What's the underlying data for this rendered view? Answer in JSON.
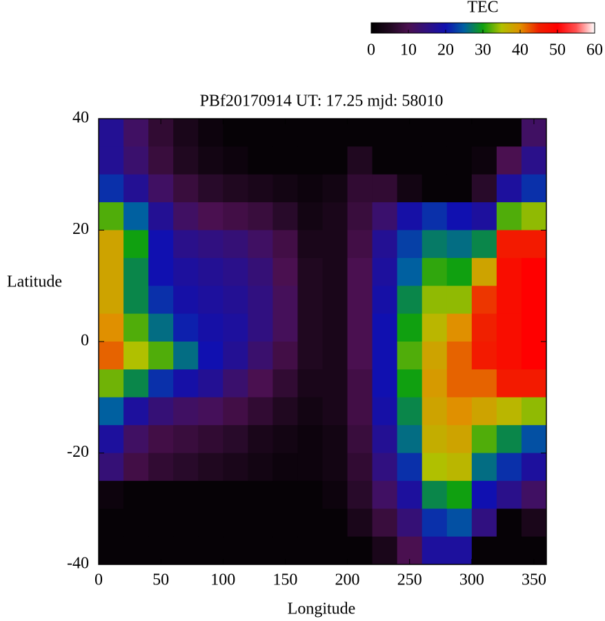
{
  "chart_data": {
    "type": "heatmap",
    "title": "PBf20170914  UT: 17.25  mjd: 58010",
    "x_label": "Longitude",
    "y_label": "Latitude",
    "x": [
      10,
      30,
      50,
      70,
      90,
      110,
      130,
      150,
      170,
      190,
      210,
      230,
      250,
      270,
      290,
      310,
      330,
      350
    ],
    "y": [
      37.5,
      32.5,
      27.5,
      22.5,
      17.5,
      12.5,
      7.5,
      2.5,
      -2.5,
      -7.5,
      -12.5,
      -17.5,
      -22.5,
      -27.5,
      -32.5,
      -37.5
    ],
    "z": [
      [
        17,
        17,
        22,
        32,
        38,
        38,
        38,
        40,
        42,
        33,
        25,
        18,
        14,
        2,
        1,
        1
      ],
      [
        12,
        13,
        17,
        25,
        30,
        28,
        28,
        32,
        35,
        28,
        18,
        12,
        9,
        1,
        1,
        1
      ],
      [
        7,
        8,
        12,
        17,
        20,
        20,
        22,
        26,
        32,
        22,
        14,
        9,
        7,
        1,
        1,
        1
      ],
      [
        4,
        5,
        8,
        12,
        16,
        18,
        19,
        21,
        26,
        19,
        12,
        8,
        6,
        1,
        1,
        1
      ],
      [
        2,
        3,
        6,
        10,
        15,
        17,
        18,
        19,
        20,
        17,
        11,
        7,
        5,
        1,
        1,
        1
      ],
      [
        1,
        2,
        5,
        9,
        14,
        16,
        17,
        18,
        17,
        13,
        9,
        6,
        4,
        1,
        1,
        1
      ],
      [
        1,
        1,
        4,
        8,
        12,
        14,
        15,
        15,
        13,
        10,
        7,
        4,
        3,
        1,
        1,
        1
      ],
      [
        1,
        1,
        3,
        6,
        9,
        10,
        11,
        11,
        9,
        7,
        5,
        3,
        2,
        1,
        1,
        1
      ],
      [
        1,
        1,
        2,
        3,
        4,
        5,
        5,
        5,
        5,
        4,
        3,
        2,
        2,
        1,
        1,
        1
      ],
      [
        1,
        1,
        3,
        4,
        4,
        4,
        4,
        4,
        4,
        4,
        4,
        3,
        3,
        2,
        1,
        1
      ],
      [
        1,
        5,
        7,
        8,
        9,
        10,
        10,
        10,
        10,
        9,
        9,
        8,
        7,
        6,
        4,
        1
      ],
      [
        1,
        1,
        7,
        13,
        17,
        18,
        19,
        20,
        20,
        20,
        19,
        17,
        15,
        12,
        8,
        4
      ],
      [
        1,
        1,
        3,
        19,
        23,
        25,
        28,
        30,
        32,
        30,
        28,
        26,
        22,
        18,
        14,
        10
      ],
      [
        1,
        1,
        1,
        22,
        27,
        31,
        34,
        36,
        38,
        39,
        38,
        37,
        35,
        28,
        22,
        18
      ],
      [
        1,
        1,
        1,
        20,
        26,
        30,
        34,
        40,
        42,
        42,
        40,
        38,
        36,
        30,
        24,
        18
      ],
      [
        1,
        2,
        6,
        18,
        28,
        38,
        44,
        45,
        46,
        42,
        38,
        32,
        26,
        20,
        15,
        1
      ],
      [
        1,
        10,
        18,
        32,
        46,
        48,
        48,
        48,
        48,
        46,
        36,
        28,
        22,
        16,
        1,
        1
      ],
      [
        12,
        16,
        22,
        34,
        46,
        50,
        50,
        50,
        50,
        46,
        34,
        24,
        18,
        12,
        4,
        1
      ]
    ],
    "xlim": [
      0,
      360
    ],
    "ylim": [
      -40,
      40
    ],
    "xticks": [
      0,
      50,
      100,
      150,
      200,
      250,
      300,
      350
    ],
    "yticks": [
      -40,
      -20,
      0,
      20,
      40
    ],
    "colorbar": {
      "label": "TEC",
      "lim": [
        0,
        60
      ],
      "ticks": [
        0,
        10,
        20,
        30,
        40,
        50,
        60
      ],
      "colors": [
        "#000000",
        "#200820",
        "#4a1050",
        "#301080",
        "#1010b0",
        "#0060a0",
        "#10a010",
        "#b0c000",
        "#e09000",
        "#f02000",
        "#ff0000",
        "#ff5050",
        "#ffffff"
      ]
    }
  }
}
